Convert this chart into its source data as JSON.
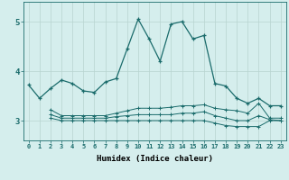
{
  "xlabel": "Humidex (Indice chaleur)",
  "background_color": "#d5eeed",
  "grid_color": "#b8d4d0",
  "line_color": "#1a6b6b",
  "xlim": [
    -0.5,
    23.5
  ],
  "ylim": [
    2.6,
    5.4
  ],
  "yticks": [
    3,
    4,
    5
  ],
  "xticks": [
    0,
    1,
    2,
    3,
    4,
    5,
    6,
    7,
    8,
    9,
    10,
    11,
    12,
    13,
    14,
    15,
    16,
    17,
    18,
    19,
    20,
    21,
    22,
    23
  ],
  "series1_x": [
    0,
    1,
    2,
    3,
    4,
    5,
    6,
    7,
    8,
    9,
    10,
    11,
    12,
    13,
    14,
    15,
    16,
    17,
    18,
    19,
    20,
    21,
    22,
    23
  ],
  "series1_y": [
    3.72,
    3.45,
    3.65,
    3.82,
    3.75,
    3.6,
    3.57,
    3.78,
    3.85,
    4.45,
    5.05,
    4.65,
    4.2,
    4.95,
    5.0,
    4.65,
    4.72,
    3.75,
    3.7,
    3.45,
    3.35,
    3.45,
    3.3,
    3.3
  ],
  "series2_x": [
    2,
    3,
    4,
    5,
    6,
    7,
    8,
    9,
    10,
    11,
    12,
    13,
    14,
    15,
    16,
    17,
    18,
    19,
    20,
    21,
    22,
    23
  ],
  "series2_y": [
    3.22,
    3.1,
    3.1,
    3.1,
    3.1,
    3.1,
    3.15,
    3.2,
    3.25,
    3.25,
    3.25,
    3.27,
    3.3,
    3.3,
    3.32,
    3.25,
    3.22,
    3.2,
    3.15,
    3.35,
    3.05,
    3.05
  ],
  "series3_x": [
    2,
    3,
    4,
    5,
    6,
    7,
    8,
    9,
    10,
    11,
    12,
    13,
    14,
    15,
    16,
    17,
    18,
    19,
    20,
    21,
    22,
    23
  ],
  "series3_y": [
    3.05,
    3.0,
    3.0,
    3.0,
    3.0,
    3.0,
    3.0,
    3.0,
    3.0,
    3.0,
    3.0,
    3.0,
    3.0,
    3.0,
    3.0,
    2.95,
    2.9,
    2.88,
    2.88,
    2.88,
    3.0,
    3.0
  ],
  "series4_x": [
    2,
    3,
    4,
    5,
    6,
    7,
    8,
    9,
    10,
    11,
    12,
    13,
    14,
    15,
    16,
    17,
    18,
    19,
    20,
    21,
    22,
    23
  ],
  "series4_y": [
    3.12,
    3.05,
    3.05,
    3.05,
    3.05,
    3.05,
    3.08,
    3.1,
    3.12,
    3.12,
    3.12,
    3.12,
    3.15,
    3.15,
    3.18,
    3.1,
    3.05,
    3.0,
    3.0,
    3.1,
    3.02,
    3.0
  ]
}
